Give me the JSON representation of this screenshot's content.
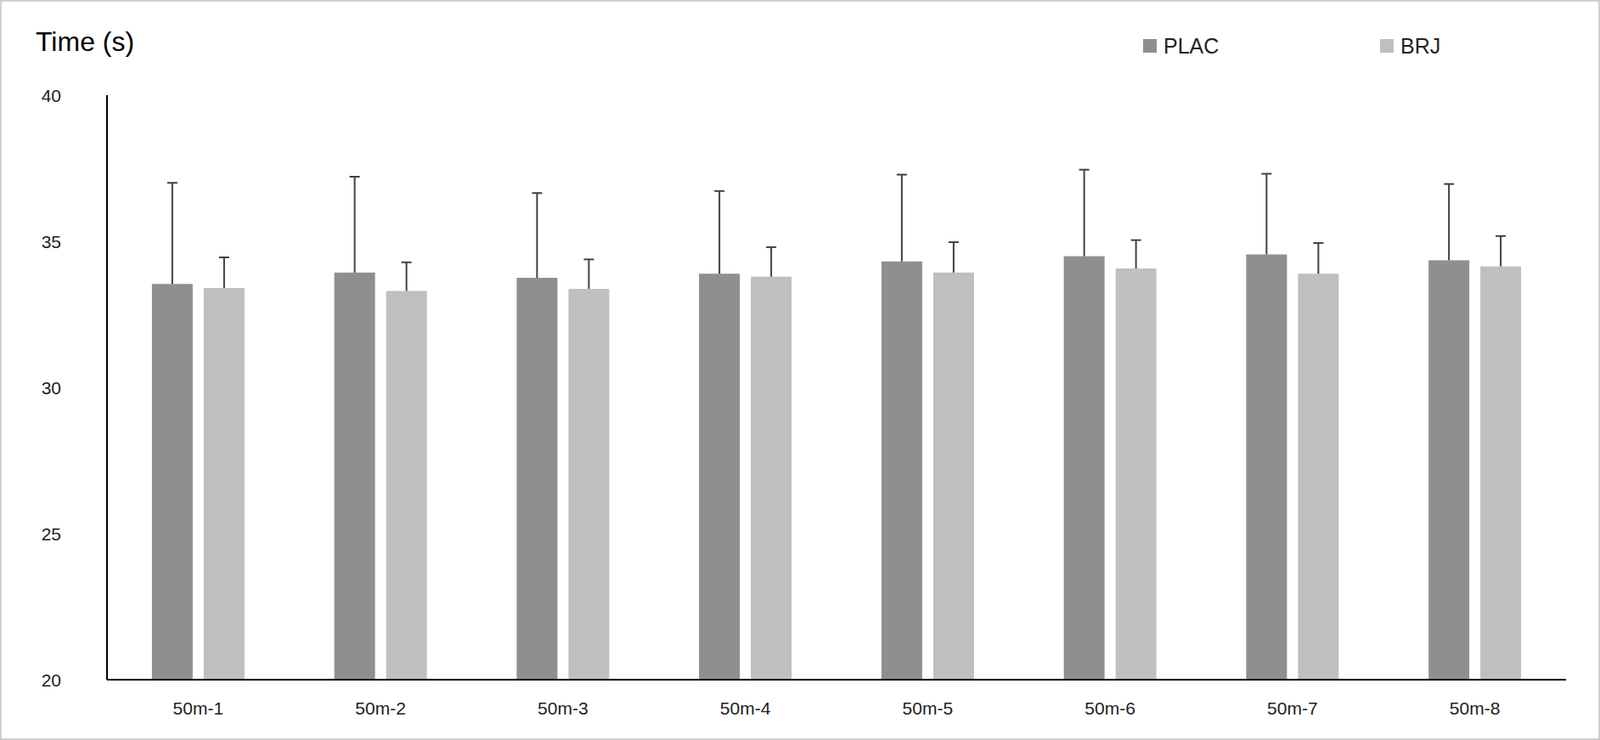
{
  "chart_data": {
    "type": "bar",
    "y_label": "Time (s)",
    "categories": [
      "50m-1",
      "50m-2",
      "50m-3",
      "50m-4",
      "50m-5",
      "50m-6",
      "50m-7",
      "50m-8"
    ],
    "series": [
      {
        "name": "PLAC",
        "color": "#8f8f8f",
        "values": [
          33.54,
          33.93,
          33.75,
          33.89,
          34.31,
          34.49,
          34.55,
          34.35
        ],
        "errors": [
          3.46,
          3.28,
          2.9,
          2.83,
          2.97,
          2.96,
          2.76,
          2.61
        ]
      },
      {
        "name": "BRJ",
        "color": "#bfbfbf",
        "values": [
          33.4,
          33.3,
          33.37,
          33.79,
          33.93,
          34.07,
          33.89,
          34.14
        ],
        "errors": [
          1.05,
          0.98,
          1.01,
          1.01,
          1.04,
          0.97,
          1.05,
          1.04
        ]
      }
    ],
    "ylim": [
      20,
      40
    ],
    "yticks": [
      20,
      25,
      30,
      35,
      40
    ],
    "grid": false,
    "legend": "top-right"
  }
}
